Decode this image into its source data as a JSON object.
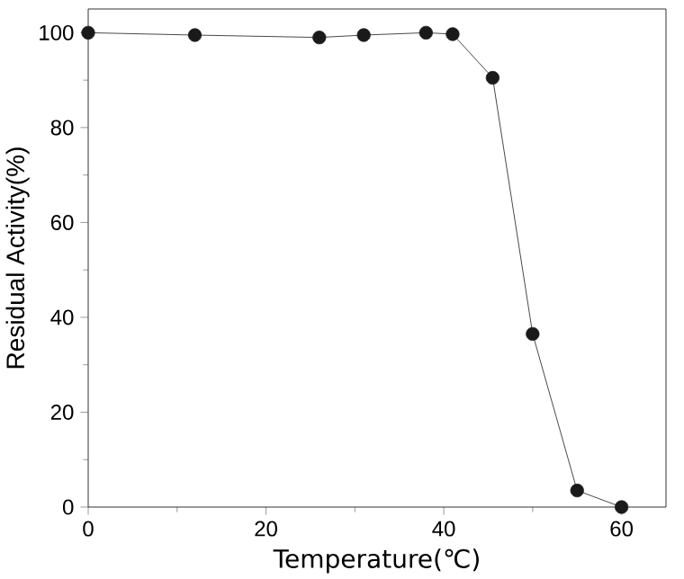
{
  "chart_data": {
    "type": "line",
    "xlabel": "Temperature(℃)",
    "ylabel": "Residual Activity(%)",
    "x": [
      0,
      12,
      26,
      31,
      38,
      41,
      45.5,
      50,
      55,
      60
    ],
    "values": [
      100,
      99.5,
      99,
      99.5,
      100,
      99.7,
      90.5,
      36.5,
      3.5,
      0
    ],
    "color": "#1a1a1a",
    "marker": "circle",
    "line_style": "solid",
    "xlim": [
      0,
      65
    ],
    "ylim": [
      0,
      105
    ],
    "xticks": [
      0,
      20,
      40,
      60
    ],
    "yticks": [
      0,
      20,
      40,
      60,
      80,
      100
    ],
    "grid": false
  }
}
